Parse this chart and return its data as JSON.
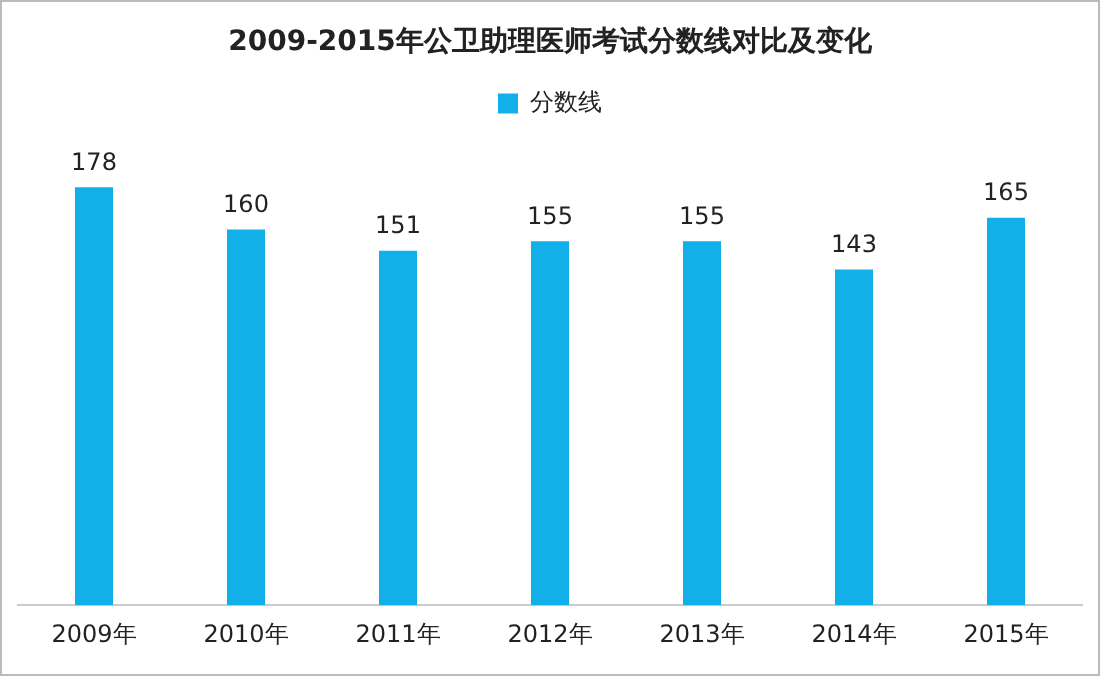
{
  "chart_data": {
    "type": "bar",
    "title": "2009-2015年公卫助理医师考试分数线对比及变化",
    "categories": [
      "2009年",
      "2010年",
      "2011年",
      "2012年",
      "2013年",
      "2014年",
      "2015年"
    ],
    "series": [
      {
        "name": "分数线",
        "color": "#12b0e8",
        "values": [
          178,
          160,
          151,
          155,
          155,
          143,
          165
        ]
      }
    ],
    "data_labels": true,
    "grid": false,
    "legend": "top",
    "tick_labels": "x"
  }
}
